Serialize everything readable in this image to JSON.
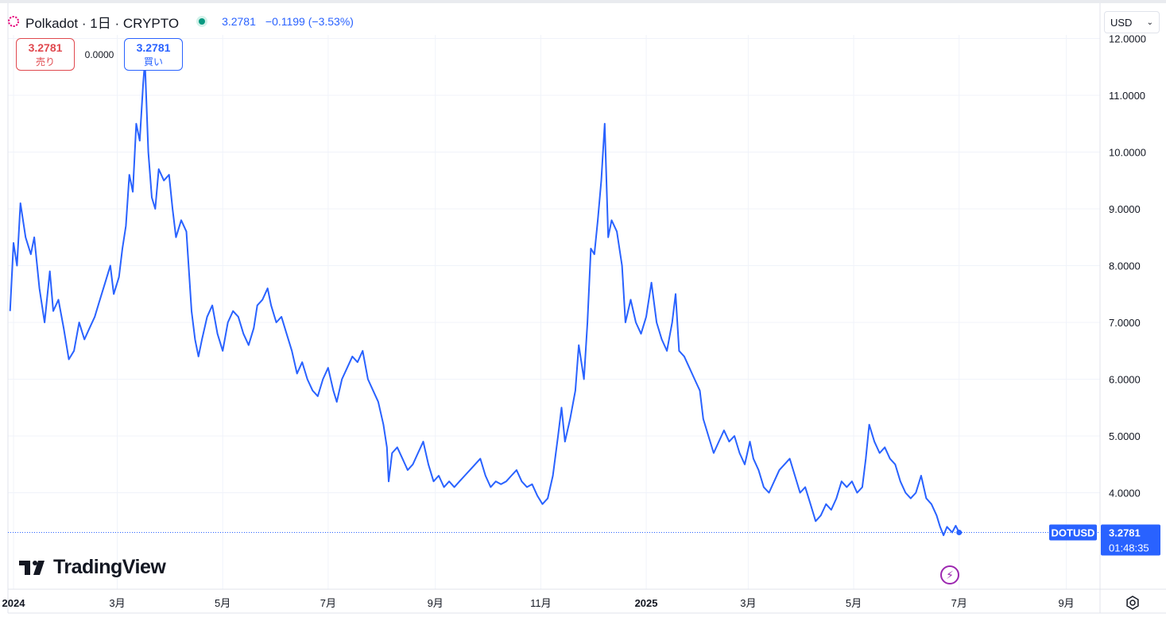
{
  "header": {
    "title": "Polkadot · 1日 · CRYPTO",
    "price": "3.2781",
    "change": "−0.1199 (−3.53%)"
  },
  "trade": {
    "sell_value": "3.2781",
    "sell_label": "売り",
    "spread": "0.0000",
    "buy_value": "3.2781",
    "buy_label": "買い"
  },
  "currency": "USD",
  "brand": "TradingView",
  "colors": {
    "line": "#2962ff",
    "sell": "#e0484e",
    "buy": "#2962ff",
    "live_dot": "#089981"
  },
  "icons": [
    "polkadot-logo-icon",
    "market-status-dot-icon",
    "chevron-down-icon",
    "tradingview-logo-icon",
    "lightning-icon",
    "settings-icon"
  ],
  "chart_data": {
    "type": "line",
    "symbol": "DOTUSD",
    "ylim": [
      2.9,
      12.2
    ],
    "y_ticks": [
      4,
      5,
      6,
      7,
      8,
      9,
      10,
      11,
      12
    ],
    "y_tick_labels": [
      "4.0000",
      "5.0000",
      "6.0000",
      "7.0000",
      "8.0000",
      "9.0000",
      "10.0000",
      "11.0000",
      "12.0000"
    ],
    "x_range": [
      "2024-01-01",
      "2025-09-30"
    ],
    "x_ticks": [
      {
        "date": "2024-01-01",
        "label": "2024",
        "bold": true
      },
      {
        "date": "2024-03-01",
        "label": "3月"
      },
      {
        "date": "2024-05-01",
        "label": "5月"
      },
      {
        "date": "2024-07-01",
        "label": "7月"
      },
      {
        "date": "2024-09-01",
        "label": "9月"
      },
      {
        "date": "2024-11-01",
        "label": "11月"
      },
      {
        "date": "2025-01-01",
        "label": "2025",
        "bold": true
      },
      {
        "date": "2025-03-01",
        "label": "3月"
      },
      {
        "date": "2025-05-01",
        "label": "5月"
      },
      {
        "date": "2025-07-01",
        "label": "7月"
      },
      {
        "date": "2025-09-01",
        "label": "9月"
      }
    ],
    "last_price_label": "3.2781",
    "countdown": "01:48:35",
    "series": [
      {
        "points": [
          [
            "2023-12-30",
            7.2
          ],
          [
            "2024-01-01",
            8.4
          ],
          [
            "2024-01-03",
            8.0
          ],
          [
            "2024-01-05",
            9.1
          ],
          [
            "2024-01-08",
            8.5
          ],
          [
            "2024-01-11",
            8.2
          ],
          [
            "2024-01-13",
            8.5
          ],
          [
            "2024-01-16",
            7.6
          ],
          [
            "2024-01-19",
            7.0
          ],
          [
            "2024-01-22",
            7.9
          ],
          [
            "2024-01-24",
            7.2
          ],
          [
            "2024-01-27",
            7.4
          ],
          [
            "2024-01-30",
            6.9
          ],
          [
            "2024-02-02",
            6.35
          ],
          [
            "2024-02-05",
            6.5
          ],
          [
            "2024-02-08",
            7.0
          ],
          [
            "2024-02-11",
            6.7
          ],
          [
            "2024-02-14",
            6.9
          ],
          [
            "2024-02-17",
            7.1
          ],
          [
            "2024-02-20",
            7.4
          ],
          [
            "2024-02-23",
            7.7
          ],
          [
            "2024-02-26",
            8.0
          ],
          [
            "2024-02-28",
            7.5
          ],
          [
            "2024-03-02",
            7.8
          ],
          [
            "2024-03-04",
            8.3
          ],
          [
            "2024-03-06",
            8.7
          ],
          [
            "2024-03-08",
            9.6
          ],
          [
            "2024-03-10",
            9.3
          ],
          [
            "2024-03-12",
            10.5
          ],
          [
            "2024-03-14",
            10.2
          ],
          [
            "2024-03-16",
            11.2
          ],
          [
            "2024-03-17",
            11.6
          ],
          [
            "2024-03-19",
            10.0
          ],
          [
            "2024-03-21",
            9.2
          ],
          [
            "2024-03-23",
            9.0
          ],
          [
            "2024-03-25",
            9.7
          ],
          [
            "2024-03-28",
            9.5
          ],
          [
            "2024-03-31",
            9.6
          ],
          [
            "2024-04-02",
            9.0
          ],
          [
            "2024-04-04",
            8.5
          ],
          [
            "2024-04-07",
            8.8
          ],
          [
            "2024-04-10",
            8.6
          ],
          [
            "2024-04-13",
            7.2
          ],
          [
            "2024-04-15",
            6.7
          ],
          [
            "2024-04-17",
            6.4
          ],
          [
            "2024-04-19",
            6.7
          ],
          [
            "2024-04-22",
            7.1
          ],
          [
            "2024-04-25",
            7.3
          ],
          [
            "2024-04-28",
            6.8
          ],
          [
            "2024-05-01",
            6.5
          ],
          [
            "2024-05-04",
            7.0
          ],
          [
            "2024-05-07",
            7.2
          ],
          [
            "2024-05-10",
            7.1
          ],
          [
            "2024-05-13",
            6.8
          ],
          [
            "2024-05-16",
            6.6
          ],
          [
            "2024-05-19",
            6.9
          ],
          [
            "2024-05-21",
            7.3
          ],
          [
            "2024-05-24",
            7.4
          ],
          [
            "2024-05-27",
            7.6
          ],
          [
            "2024-05-29",
            7.3
          ],
          [
            "2024-06-01",
            7.0
          ],
          [
            "2024-06-04",
            7.1
          ],
          [
            "2024-06-07",
            6.8
          ],
          [
            "2024-06-10",
            6.5
          ],
          [
            "2024-06-13",
            6.1
          ],
          [
            "2024-06-16",
            6.3
          ],
          [
            "2024-06-19",
            6.0
          ],
          [
            "2024-06-22",
            5.8
          ],
          [
            "2024-06-25",
            5.7
          ],
          [
            "2024-06-28",
            6.0
          ],
          [
            "2024-07-01",
            6.2
          ],
          [
            "2024-07-04",
            5.8
          ],
          [
            "2024-07-06",
            5.6
          ],
          [
            "2024-07-09",
            6.0
          ],
          [
            "2024-07-12",
            6.2
          ],
          [
            "2024-07-15",
            6.4
          ],
          [
            "2024-07-18",
            6.3
          ],
          [
            "2024-07-21",
            6.5
          ],
          [
            "2024-07-24",
            6.0
          ],
          [
            "2024-07-27",
            5.8
          ],
          [
            "2024-07-30",
            5.6
          ],
          [
            "2024-08-02",
            5.2
          ],
          [
            "2024-08-04",
            4.8
          ],
          [
            "2024-08-05",
            4.2
          ],
          [
            "2024-08-07",
            4.7
          ],
          [
            "2024-08-10",
            4.8
          ],
          [
            "2024-08-13",
            4.6
          ],
          [
            "2024-08-16",
            4.4
          ],
          [
            "2024-08-19",
            4.5
          ],
          [
            "2024-08-22",
            4.7
          ],
          [
            "2024-08-25",
            4.9
          ],
          [
            "2024-08-28",
            4.5
          ],
          [
            "2024-08-31",
            4.2
          ],
          [
            "2024-09-03",
            4.3
          ],
          [
            "2024-09-06",
            4.1
          ],
          [
            "2024-09-09",
            4.2
          ],
          [
            "2024-09-12",
            4.1
          ],
          [
            "2024-09-15",
            4.2
          ],
          [
            "2024-09-18",
            4.3
          ],
          [
            "2024-09-21",
            4.4
          ],
          [
            "2024-09-24",
            4.5
          ],
          [
            "2024-09-27",
            4.6
          ],
          [
            "2024-09-30",
            4.3
          ],
          [
            "2024-10-03",
            4.1
          ],
          [
            "2024-10-06",
            4.2
          ],
          [
            "2024-10-09",
            4.15
          ],
          [
            "2024-10-12",
            4.2
          ],
          [
            "2024-10-15",
            4.3
          ],
          [
            "2024-10-18",
            4.4
          ],
          [
            "2024-10-21",
            4.2
          ],
          [
            "2024-10-24",
            4.1
          ],
          [
            "2024-10-27",
            4.15
          ],
          [
            "2024-10-30",
            3.95
          ],
          [
            "2024-11-02",
            3.8
          ],
          [
            "2024-11-05",
            3.9
          ],
          [
            "2024-11-08",
            4.3
          ],
          [
            "2024-11-11",
            5.0
          ],
          [
            "2024-11-13",
            5.5
          ],
          [
            "2024-11-15",
            4.9
          ],
          [
            "2024-11-18",
            5.3
          ],
          [
            "2024-11-21",
            5.8
          ],
          [
            "2024-11-23",
            6.6
          ],
          [
            "2024-11-26",
            6.0
          ],
          [
            "2024-11-28",
            7.0
          ],
          [
            "2024-11-30",
            8.3
          ],
          [
            "2024-12-02",
            8.2
          ],
          [
            "2024-12-04",
            8.8
          ],
          [
            "2024-12-06",
            9.5
          ],
          [
            "2024-12-08",
            10.5
          ],
          [
            "2024-12-10",
            8.5
          ],
          [
            "2024-12-12",
            8.8
          ],
          [
            "2024-12-15",
            8.6
          ],
          [
            "2024-12-18",
            8.0
          ],
          [
            "2024-12-20",
            7.0
          ],
          [
            "2024-12-23",
            7.4
          ],
          [
            "2024-12-26",
            7.0
          ],
          [
            "2024-12-29",
            6.8
          ],
          [
            "2025-01-01",
            7.1
          ],
          [
            "2025-01-04",
            7.7
          ],
          [
            "2025-01-07",
            7.0
          ],
          [
            "2025-01-10",
            6.7
          ],
          [
            "2025-01-13",
            6.5
          ],
          [
            "2025-01-16",
            7.0
          ],
          [
            "2025-01-18",
            7.5
          ],
          [
            "2025-01-20",
            6.5
          ],
          [
            "2025-01-23",
            6.4
          ],
          [
            "2025-01-26",
            6.2
          ],
          [
            "2025-01-29",
            6.0
          ],
          [
            "2025-02-01",
            5.8
          ],
          [
            "2025-02-03",
            5.3
          ],
          [
            "2025-02-06",
            5.0
          ],
          [
            "2025-02-09",
            4.7
          ],
          [
            "2025-02-12",
            4.9
          ],
          [
            "2025-02-15",
            5.1
          ],
          [
            "2025-02-18",
            4.9
          ],
          [
            "2025-02-21",
            5.0
          ],
          [
            "2025-02-24",
            4.7
          ],
          [
            "2025-02-27",
            4.5
          ],
          [
            "2025-03-02",
            4.9
          ],
          [
            "2025-03-04",
            4.6
          ],
          [
            "2025-03-07",
            4.4
          ],
          [
            "2025-03-10",
            4.1
          ],
          [
            "2025-03-13",
            4.0
          ],
          [
            "2025-03-16",
            4.2
          ],
          [
            "2025-03-19",
            4.4
          ],
          [
            "2025-03-22",
            4.5
          ],
          [
            "2025-03-25",
            4.6
          ],
          [
            "2025-03-28",
            4.3
          ],
          [
            "2025-03-31",
            4.0
          ],
          [
            "2025-04-03",
            4.1
          ],
          [
            "2025-04-06",
            3.8
          ],
          [
            "2025-04-09",
            3.5
          ],
          [
            "2025-04-12",
            3.6
          ],
          [
            "2025-04-15",
            3.8
          ],
          [
            "2025-04-18",
            3.7
          ],
          [
            "2025-04-21",
            3.9
          ],
          [
            "2025-04-24",
            4.2
          ],
          [
            "2025-04-27",
            4.1
          ],
          [
            "2025-04-30",
            4.2
          ],
          [
            "2025-05-03",
            4.0
          ],
          [
            "2025-05-06",
            4.1
          ],
          [
            "2025-05-08",
            4.6
          ],
          [
            "2025-05-10",
            5.2
          ],
          [
            "2025-05-13",
            4.9
          ],
          [
            "2025-05-16",
            4.7
          ],
          [
            "2025-05-19",
            4.8
          ],
          [
            "2025-05-22",
            4.6
          ],
          [
            "2025-05-25",
            4.5
          ],
          [
            "2025-05-28",
            4.2
          ],
          [
            "2025-05-31",
            4.0
          ],
          [
            "2025-06-03",
            3.9
          ],
          [
            "2025-06-06",
            4.0
          ],
          [
            "2025-06-09",
            4.3
          ],
          [
            "2025-06-12",
            3.9
          ],
          [
            "2025-06-15",
            3.8
          ],
          [
            "2025-06-18",
            3.6
          ],
          [
            "2025-06-20",
            3.4
          ],
          [
            "2025-06-22",
            3.25
          ],
          [
            "2025-06-24",
            3.4
          ],
          [
            "2025-06-27",
            3.3
          ],
          [
            "2025-06-29",
            3.42
          ],
          [
            "2025-07-01",
            3.3
          ]
        ]
      }
    ]
  }
}
